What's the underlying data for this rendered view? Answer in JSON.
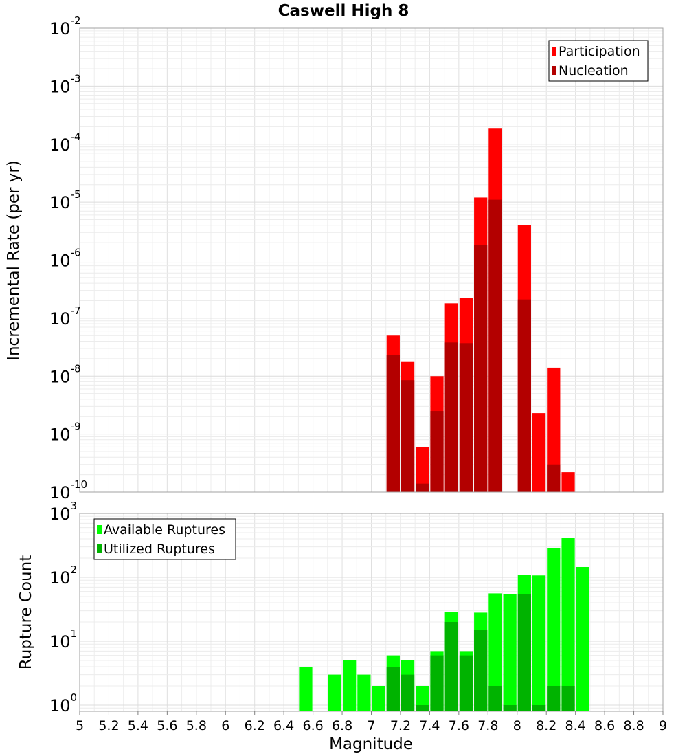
{
  "chart_data": [
    {
      "type": "bar",
      "title": "Caswell High 8",
      "ylabel": "Incremental Rate (per yr)",
      "xlabel": "",
      "yscale": "log",
      "xlim": [
        5,
        9
      ],
      "ylim": [
        1e-10,
        0.01
      ],
      "ytick_exponents": [
        -10,
        -9,
        -8,
        -7,
        -6,
        -5,
        -4,
        -3,
        -2
      ],
      "grid": true,
      "legend_position": "top-right",
      "bar_width": 0.1,
      "x": [
        7.15,
        7.25,
        7.35,
        7.45,
        7.55,
        7.65,
        7.75,
        7.85,
        8.05,
        8.15,
        8.25,
        8.35
      ],
      "series": [
        {
          "name": "Participation",
          "color": "#ff0000",
          "values": [
            5e-08,
            1.8e-08,
            6e-10,
            1e-08,
            1.8e-07,
            2.2e-07,
            1.2e-05,
            0.00019,
            4e-06,
            2.3e-09,
            1.4e-08,
            2.2e-10
          ]
        },
        {
          "name": "Nucleation",
          "color": "#b30000",
          "values": [
            2.3e-08,
            8.5e-09,
            1.4e-10,
            2.5e-09,
            3.8e-08,
            3.7e-08,
            1.8e-06,
            1.1e-05,
            2.1e-07,
            null,
            3e-10,
            null
          ]
        }
      ]
    },
    {
      "type": "bar",
      "title": "",
      "ylabel": "Rupture Count",
      "xlabel": "Magnitude",
      "yscale": "log",
      "xlim": [
        5,
        9
      ],
      "ylim": [
        0.8,
        1000
      ],
      "ytick_exponents": [
        0,
        1,
        2,
        3
      ],
      "xticks": [
        "5",
        "5.2",
        "5.4",
        "5.6",
        "5.8",
        "6",
        "6.2",
        "6.4",
        "6.6",
        "6.8",
        "7",
        "7.2",
        "7.4",
        "7.6",
        "7.8",
        "8",
        "8.2",
        "8.4",
        "8.6",
        "8.8",
        "9"
      ],
      "grid": true,
      "legend_position": "top-left",
      "bar_width": 0.1,
      "x": [
        6.55,
        6.75,
        6.85,
        6.95,
        7.05,
        7.15,
        7.25,
        7.35,
        7.45,
        7.55,
        7.65,
        7.75,
        7.85,
        7.95,
        8.05,
        8.15,
        8.25,
        8.35,
        8.45
      ],
      "series": [
        {
          "name": "Available Ruptures",
          "color": "#00ff00",
          "values": [
            4,
            3,
            5,
            3,
            2,
            6,
            5,
            2,
            7,
            29,
            7,
            28,
            56,
            54,
            108,
            107,
            290,
            410,
            145
          ]
        },
        {
          "name": "Utilized Ruptures",
          "color": "#00b300",
          "values": [
            null,
            null,
            null,
            null,
            null,
            4,
            3,
            1,
            6,
            20,
            6,
            15,
            2,
            1,
            55,
            1,
            2,
            2,
            null
          ]
        }
      ]
    }
  ]
}
